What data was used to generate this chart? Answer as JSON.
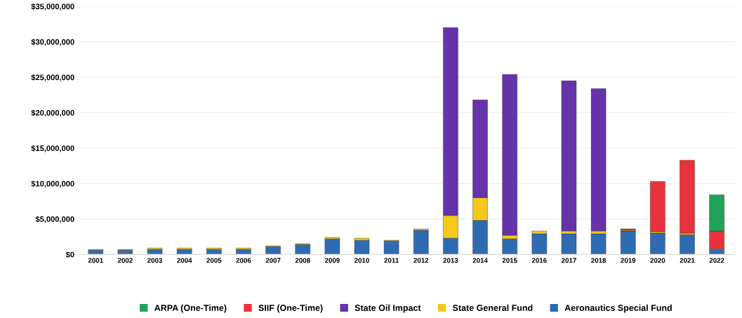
{
  "chart_data": {
    "type": "bar",
    "stacked": true,
    "categories": [
      "2001",
      "2002",
      "2003",
      "2004",
      "2005",
      "2006",
      "2007",
      "2008",
      "2009",
      "2010",
      "2011",
      "2012",
      "2013",
      "2014",
      "2015",
      "2016",
      "2017",
      "2018",
      "2019",
      "2020",
      "2021",
      "2022"
    ],
    "series": [
      {
        "name": "Aeronautics Special Fund",
        "color": "#2f6bb3",
        "values": [
          600000,
          600000,
          700000,
          700000,
          700000,
          700000,
          1100000,
          1400000,
          2200000,
          2000000,
          1900000,
          3400000,
          2300000,
          4800000,
          2200000,
          2900000,
          2900000,
          2900000,
          3300000,
          3000000,
          2800000,
          700000
        ]
      },
      {
        "name": "State General Fund",
        "color": "#f5c81a",
        "values": [
          100000,
          100000,
          200000,
          200000,
          200000,
          200000,
          100000,
          100000,
          200000,
          300000,
          100000,
          200000,
          3200000,
          3200000,
          500000,
          400000,
          400000,
          400000,
          100000,
          200000,
          200000,
          100000
        ]
      },
      {
        "name": "State Oil Impact",
        "color": "#6633aa",
        "values": [
          null,
          null,
          null,
          null,
          null,
          null,
          null,
          null,
          null,
          null,
          null,
          null,
          26500000,
          13800000,
          22700000,
          null,
          21200000,
          20100000,
          null,
          null,
          null,
          null
        ]
      },
      {
        "name": "SIIF (One-Time)",
        "color": "#e8323c",
        "values": [
          null,
          null,
          null,
          null,
          null,
          null,
          null,
          null,
          null,
          null,
          null,
          null,
          null,
          null,
          null,
          null,
          null,
          null,
          200000,
          7100000,
          10300000,
          2500000
        ]
      },
      {
        "name": "ARPA (One-Time)",
        "color": "#1fa35a",
        "values": [
          null,
          null,
          null,
          null,
          null,
          null,
          null,
          null,
          null,
          null,
          null,
          null,
          null,
          null,
          null,
          null,
          null,
          null,
          null,
          null,
          null,
          5100000
        ]
      }
    ],
    "ylim": [
      0,
      35000000
    ],
    "yticks": [
      {
        "value": 0,
        "label": "$0"
      },
      {
        "value": 5000000,
        "label": "$5,000,000"
      },
      {
        "value": 10000000,
        "label": "$10,000,000"
      },
      {
        "value": 15000000,
        "label": "$15,000,000"
      },
      {
        "value": 20000000,
        "label": "$20,000,000"
      },
      {
        "value": 25000000,
        "label": "$25,000,000"
      },
      {
        "value": 30000000,
        "label": "$30,000,000"
      },
      {
        "value": 35000000,
        "label": "$35,000,000"
      }
    ],
    "grid": "y",
    "legend": "bottom"
  }
}
